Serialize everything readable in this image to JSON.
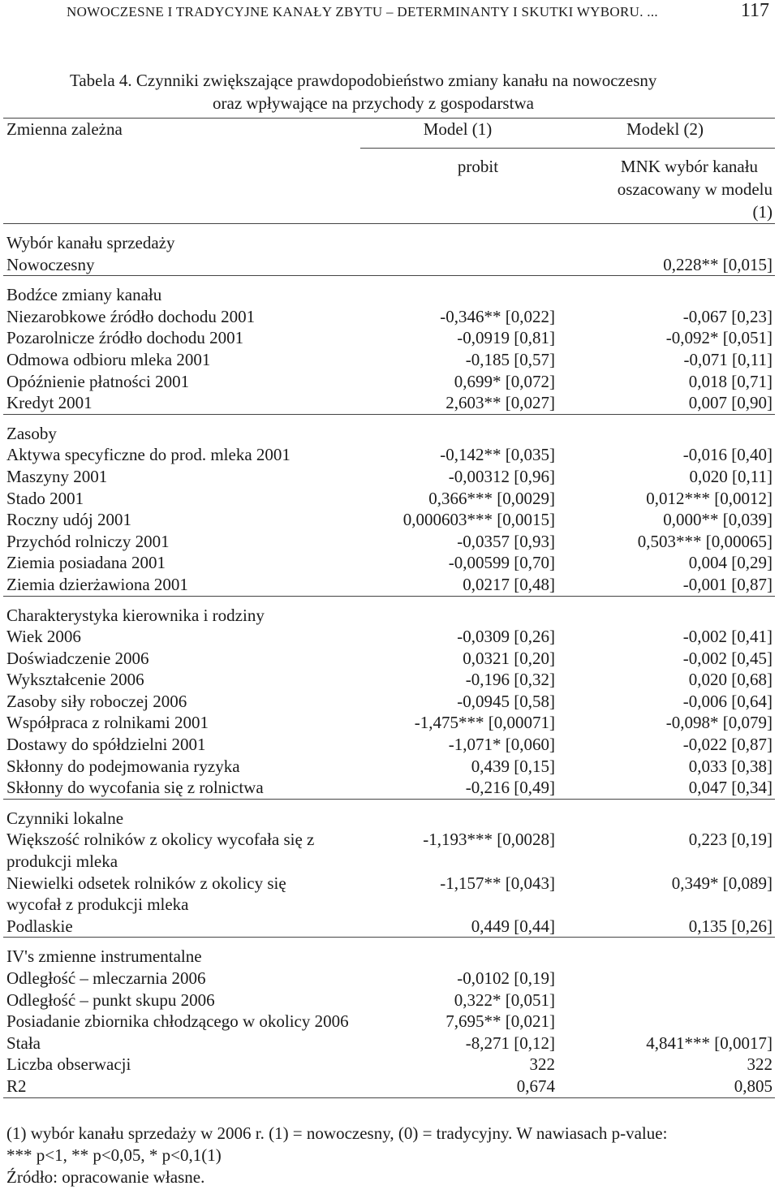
{
  "header": {
    "running_head": "NOWOCZESNE I TRADYCYJNE KANAŁY ZBYTU – DETERMINANTY I SKUTKI WYBORU. ...",
    "page_number": "117"
  },
  "caption": {
    "line1": "Tabela 4. Czynniki zwiększające prawdopodobieństwo zmiany kanału na nowoczesny",
    "line2": "oraz wpływające na przychody z gospodarstwa"
  },
  "table": {
    "head": {
      "dep_var": "Zmienna zależna",
      "model1": "Model (1)",
      "model2": "Modekl (2)",
      "model1_sub": "probit",
      "model2_sub_line1": "MNK wybór kanału",
      "model2_sub_line2": "oszacowany w modelu (1)"
    },
    "sections": [
      {
        "title": "Wybór kanału sprzedaży",
        "rows": [
          {
            "label": "Nowoczesny",
            "m1": "",
            "m2": "0,228** [0,015]"
          }
        ]
      },
      {
        "title": "Bodźce zmiany kanału",
        "rows": [
          {
            "label": "Niezarobkowe źródło dochodu 2001",
            "m1": "-0,346** [0,022]",
            "m2": "-0,067 [0,23]"
          },
          {
            "label": "Pozarolnicze źródło dochodu 2001",
            "m1": "-0,0919 [0,81]",
            "m2": "-0,092* [0,051]"
          },
          {
            "label": "Odmowa odbioru mleka 2001",
            "m1": "-0,185 [0,57]",
            "m2": "-0,071 [0,11]"
          },
          {
            "label": "Opóźnienie płatności 2001",
            "m1": "0,699* [0,072]",
            "m2": "0,018 [0,71]"
          },
          {
            "label": "Kredyt 2001",
            "m1": "2,603** [0,027]",
            "m2": "0,007 [0,90]"
          }
        ]
      },
      {
        "title": "Zasoby",
        "rows": [
          {
            "label": "Aktywa specyficzne do prod. mleka 2001",
            "m1": "-0,142** [0,035]",
            "m2": "-0,016 [0,40]"
          },
          {
            "label": "Maszyny 2001",
            "m1": "-0,00312 [0,96]",
            "m2": "0,020 [0,11]"
          },
          {
            "label": "Stado 2001",
            "m1": "0,366*** [0,0029]",
            "m2": "0,012*** [0,0012]"
          },
          {
            "label": "Roczny udój 2001",
            "m1": "0,000603*** [0,0015]",
            "m2": "0,000** [0,039]"
          },
          {
            "label": "Przychód rolniczy 2001",
            "m1": "-0,0357 [0,93]",
            "m2": "0,503*** [0,00065]"
          },
          {
            "label": "Ziemia posiadana 2001",
            "m1": "-0,00599 [0,70]",
            "m2": "0,004 [0,29]"
          },
          {
            "label": "Ziemia dzierżawiona 2001",
            "m1": "0,0217 [0,48]",
            "m2": "-0,001 [0,87]"
          }
        ]
      },
      {
        "title": "Charakterystyka kierownika i rodziny",
        "rows": [
          {
            "label": "Wiek 2006",
            "m1": "-0,0309 [0,26]",
            "m2": "-0,002 [0,41]"
          },
          {
            "label": "Doświadczenie 2006",
            "m1": "0,0321 [0,20]",
            "m2": "-0,002 [0,45]"
          },
          {
            "label": "Wykształcenie 2006",
            "m1": "-0,196 [0,32]",
            "m2": "0,020 [0,68]"
          },
          {
            "label": "Zasoby siły roboczej 2006",
            "m1": "-0,0945 [0,58]",
            "m2": "-0,006 [0,64]"
          },
          {
            "label": "Współpraca z rolnikami 2001",
            "m1": "-1,475*** [0,00071]",
            "m2": "-0,098* [0,079]"
          },
          {
            "label": "Dostawy do spółdzielni 2001",
            "m1": "-1,071* [0,060]",
            "m2": "-0,022 [0,87]"
          },
          {
            "label": "Skłonny do podejmowania ryzyka",
            "m1": "0,439 [0,15]",
            "m2": "0,033 [0,38]"
          },
          {
            "label": "Skłonny do wycofania się z rolnictwa",
            "m1": "-0,216 [0,49]",
            "m2": "0,047 [0,34]"
          }
        ]
      },
      {
        "title": "Czynniki lokalne",
        "rows": [
          {
            "label": "Większość rolników z okolicy wycofała się z produkcji mleka",
            "m1": "-1,193*** [0,0028]",
            "m2": "0,223 [0,19]"
          },
          {
            "label": "Niewielki odsetek rolników z okolicy się wycofał z produkcji mleka",
            "m1": "-1,157** [0,043]",
            "m2": "0,349* [0,089]"
          },
          {
            "label": "Podlaskie",
            "m1": "0,449 [0,44]",
            "m2": "0,135 [0,26]"
          }
        ]
      },
      {
        "title": "IV's zmienne instrumentalne",
        "rows": [
          {
            "label": "Odległość – mleczarnia 2006",
            "m1": "-0,0102 [0,19]",
            "m2": ""
          },
          {
            "label": "Odległość – punkt skupu 2006",
            "m1": "0,322* [0,051]",
            "m2": ""
          },
          {
            "label": "Posiadanie zbiornika chłodzącego w okolicy 2006",
            "m1": "7,695** [0,021]",
            "m2": ""
          },
          {
            "label": "Stała",
            "m1": "-8,271 [0,12]",
            "m2": "4,841*** [0,0017]"
          },
          {
            "label": "Liczba obserwacji",
            "m1": "322",
            "m2": "322"
          },
          {
            "label": "R2",
            "m1": "0,674",
            "m2": "0,805"
          }
        ]
      }
    ]
  },
  "footnotes": {
    "line1": "(1) wybór kanału sprzedaży w 2006 r.  (1) = nowoczesny, (0)  = tradycyjny. W nawiasach p-value:",
    "line2": "*** p<1, ** p<0,05, * p<0,1(1)",
    "source": "Źródło: opracowanie własne."
  }
}
